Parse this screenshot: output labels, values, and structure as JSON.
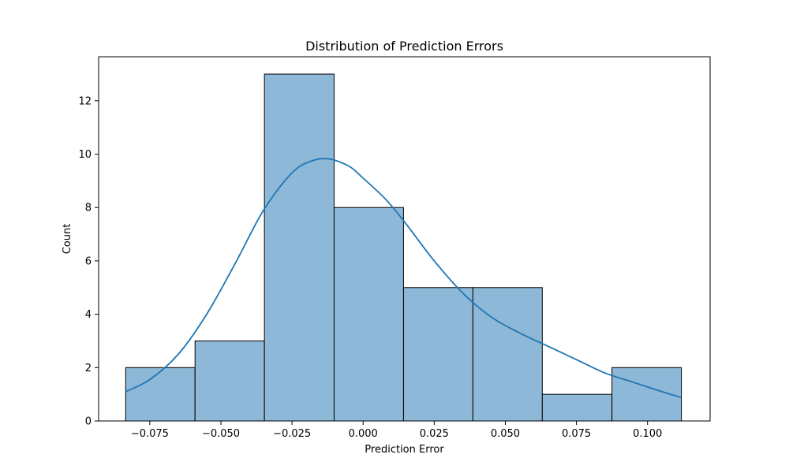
{
  "chart_data": {
    "type": "bar",
    "title": "Distribution of Prediction Errors",
    "xlabel": "Prediction Error",
    "ylabel": "Count",
    "xlim": [
      -0.093,
      0.122
    ],
    "ylim": [
      0,
      13.65
    ],
    "bin_edges": [
      -0.0835,
      -0.0591,
      -0.0347,
      -0.0102,
      0.0142,
      0.0386,
      0.063,
      0.0875,
      0.1119
    ],
    "values": [
      2,
      3,
      13,
      8,
      5,
      5,
      1,
      2
    ],
    "x_ticks": [
      -0.075,
      -0.05,
      -0.025,
      0.0,
      0.025,
      0.05,
      0.075,
      0.1
    ],
    "x_tick_labels": [
      "−0.075",
      "−0.050",
      "−0.025",
      "0.000",
      "0.025",
      "0.050",
      "0.075",
      "0.100"
    ],
    "y_ticks": [
      0,
      2,
      4,
      6,
      8,
      10,
      12
    ],
    "y_tick_labels": [
      "0",
      "2",
      "4",
      "6",
      "8",
      "10",
      "12"
    ],
    "kde": {
      "x": [
        -0.0835,
        -0.075,
        -0.065,
        -0.055,
        -0.045,
        -0.035,
        -0.025,
        -0.018,
        -0.012,
        -0.005,
        0.0,
        0.008,
        0.015,
        0.025,
        0.035,
        0.045,
        0.055,
        0.065,
        0.075,
        0.085,
        0.095,
        0.105,
        0.1119
      ],
      "y": [
        1.1,
        1.55,
        2.5,
        4.0,
        5.9,
        7.9,
        9.3,
        9.75,
        9.82,
        9.55,
        9.1,
        8.3,
        7.4,
        6.0,
        4.8,
        3.9,
        3.3,
        2.8,
        2.3,
        1.8,
        1.45,
        1.1,
        0.88
      ]
    },
    "colors": {
      "bar_fill": "#8db8d8",
      "bar_edge": "#000000",
      "kde_line": "#1f77b4"
    },
    "grid": false
  }
}
